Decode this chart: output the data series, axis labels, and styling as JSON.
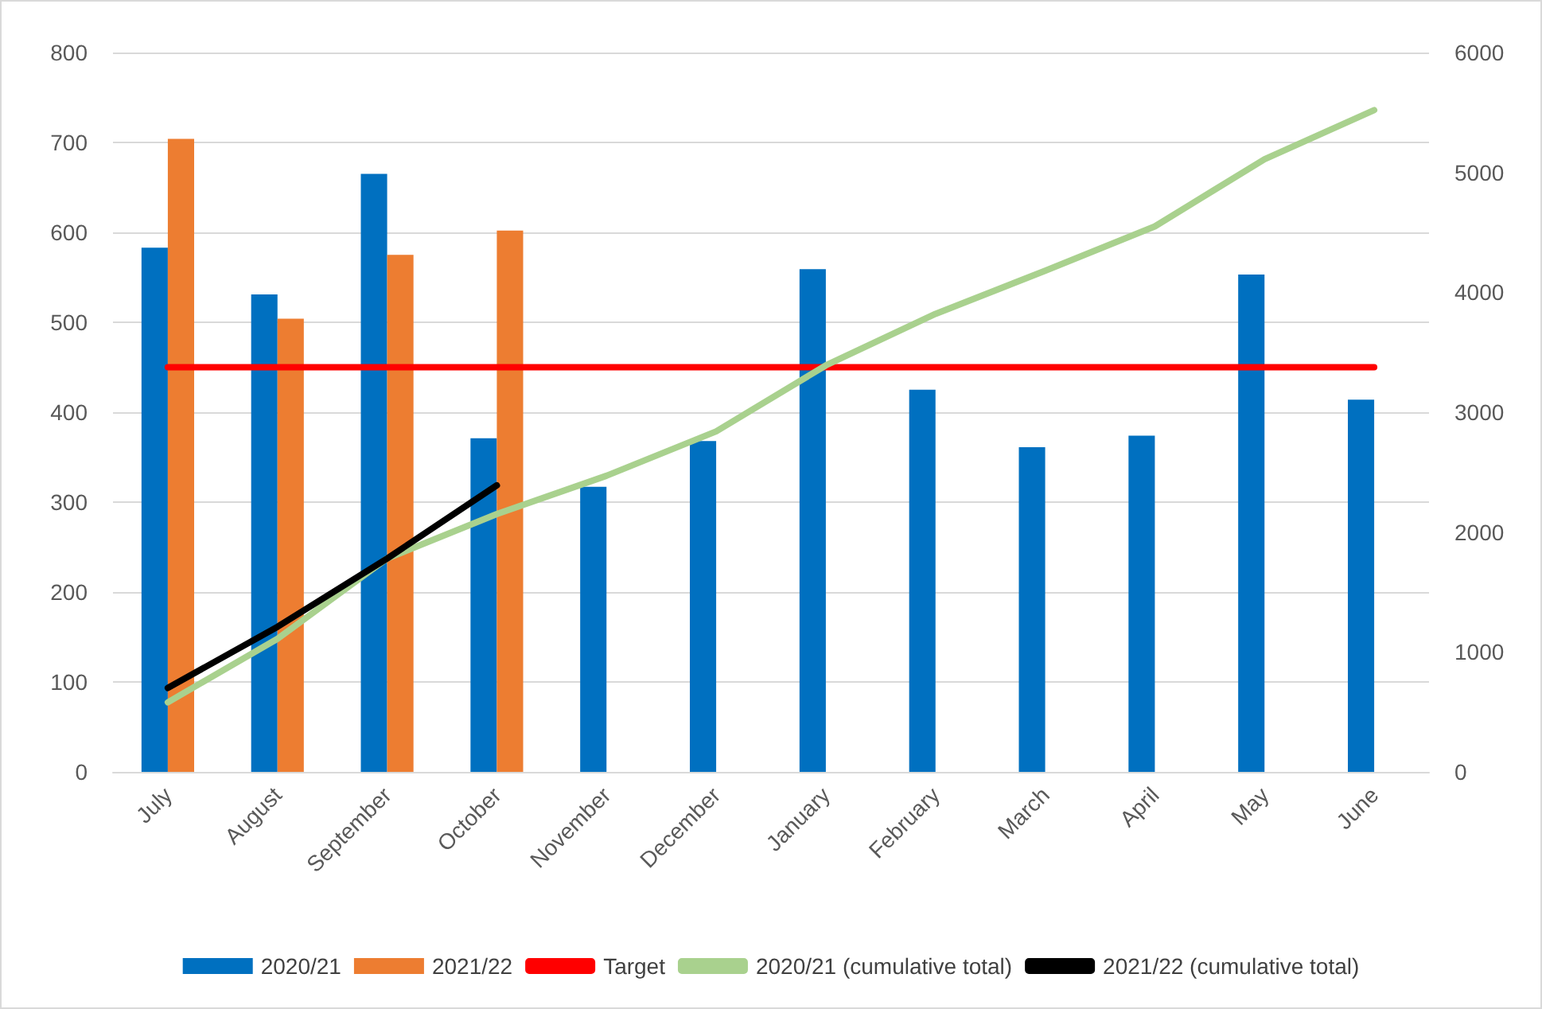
{
  "chart_data": {
    "type": "bar",
    "categories": [
      "July",
      "August",
      "September",
      "October",
      "November",
      "December",
      "January",
      "February",
      "March",
      "April",
      "May",
      "June"
    ],
    "series": [
      {
        "name": "2020/21",
        "color": "#0070c0",
        "values": [
          583,
          531,
          665,
          371,
          317,
          368,
          559,
          425,
          361,
          374,
          553,
          414
        ]
      },
      {
        "name": "2021/22",
        "color": "#ed7d31",
        "values": [
          704,
          504,
          575,
          602,
          null,
          null,
          null,
          null,
          null,
          null,
          null,
          null
        ]
      },
      {
        "name": "Target",
        "type": "line",
        "color": "#ff0000",
        "values": [
          450,
          450,
          450,
          450,
          450,
          450,
          450,
          450,
          450,
          450,
          450,
          450
        ]
      },
      {
        "name": "2020/21 (cumulative total)",
        "type": "line",
        "axis": "y2",
        "color": "#a9d18e",
        "values": [
          580,
          1110,
          1780,
          2150,
          2470,
          2840,
          3390,
          3820,
          4180,
          4550,
          5110,
          5520
        ]
      },
      {
        "name": "2021/22 (cumulative total)",
        "type": "line",
        "axis": "y2",
        "color": "#000000",
        "values": [
          700,
          1210,
          1780,
          2390,
          null,
          null,
          null,
          null,
          null,
          null,
          null,
          null
        ]
      }
    ],
    "ylim": [
      0,
      800
    ],
    "yticks": [
      0,
      100,
      200,
      300,
      400,
      500,
      600,
      700,
      800
    ],
    "y2lim": [
      0,
      6000
    ],
    "y2ticks": [
      0,
      1000,
      2000,
      3000,
      4000,
      5000,
      6000
    ],
    "grid": "y",
    "legend": "bottom",
    "marker": "none",
    "line_style": "solid"
  }
}
